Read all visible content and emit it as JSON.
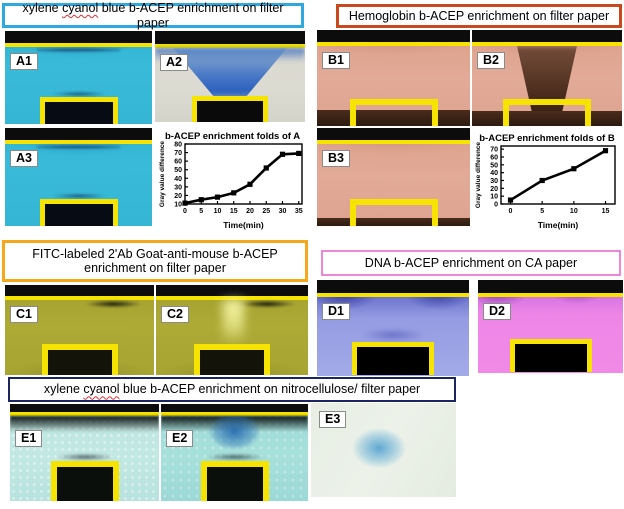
{
  "figure": {
    "sections": {
      "A": {
        "title_parts": [
          "xylene ",
          "cyanol",
          " blue b-ACEP enrichment on filter paper"
        ],
        "panels": [
          "A1",
          "A2",
          "A3"
        ]
      },
      "B": {
        "title": "Hemoglobin b-ACEP enrichment on filter paper",
        "panels": [
          "B1",
          "B2",
          "B3"
        ]
      },
      "C": {
        "title_line1": "FITC-labeled 2'Ab Goat-anti-mouse b-ACEP",
        "title_line2": "enrichment on filter paper",
        "panels": [
          "C1",
          "C2"
        ]
      },
      "D": {
        "title": "DNA b-ACEP enrichment on CA paper",
        "panels": [
          "D1",
          "D2"
        ]
      },
      "E": {
        "title_parts": [
          "xylene ",
          "cyanol",
          " blue b-ACEP enrichment on nitrocellulose/ filter paper"
        ],
        "panels": [
          "E1",
          "E2",
          "E3"
        ]
      }
    }
  },
  "colors": {
    "section_a_border": "#2EA8DF",
    "section_b_border": "#C8491C",
    "section_c_border": "#F5A81C",
    "section_d_border": "#ED87DC",
    "section_e_border": "#1B2660",
    "marker_yellow": "#F6E400",
    "panel_a_cyan": "#35B6D4",
    "panel_b_salmon": "#DDA390",
    "panel_c_olive": "#A8A432",
    "panel_d1_periwinkle": "#9AA0E2",
    "panel_d2_magenta": "#EF86E9",
    "panel_e_cyan": "#B9E3DF"
  },
  "chart_data": [
    {
      "type": "line",
      "title": "b-ACEP enrichment folds of A",
      "xlabel": "Time(min)",
      "ylabel": "Gray value difference",
      "x": [
        0,
        5,
        10,
        15,
        20,
        25,
        30,
        35
      ],
      "y": [
        11,
        15,
        18,
        23,
        33,
        52,
        68,
        69
      ],
      "xticks": [
        0,
        5,
        10,
        15,
        20,
        25,
        30,
        35
      ],
      "yticks": [
        10,
        20,
        30,
        40,
        50,
        60,
        70,
        80
      ],
      "xlim": [
        0,
        36
      ],
      "ylim": [
        10,
        80
      ],
      "marker": "square",
      "color": "#000000",
      "grid": false,
      "legend": null
    },
    {
      "type": "line",
      "title": "b-ACEP enrichment folds of B",
      "xlabel": "Time(min)",
      "ylabel": "Gray value difference",
      "x": [
        0,
        5,
        10,
        15
      ],
      "y": [
        5,
        30,
        45,
        68
      ],
      "xticks": [
        0,
        5,
        10,
        15
      ],
      "yticks": [
        0,
        10,
        20,
        30,
        40,
        50,
        60,
        70
      ],
      "xlim": [
        -1.5,
        16.5
      ],
      "ylim": [
        0,
        74
      ],
      "marker": "square",
      "color": "#000000",
      "grid": false,
      "legend": null
    }
  ]
}
